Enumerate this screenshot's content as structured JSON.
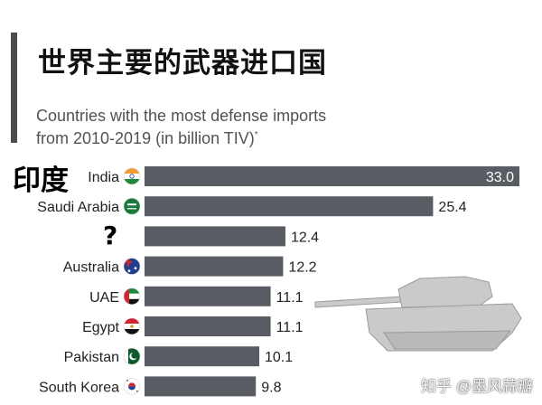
{
  "header": {
    "title": "世界主要的武器进口国",
    "subtitle_line1": "Countries with the most defense imports",
    "subtitle_line2": "from 2010-2019 (in billion TIV)",
    "subtitle_mark": "*"
  },
  "annotations": {
    "india_cn": "印度",
    "question": "?"
  },
  "watermark": "知乎 @墨风蒜瓣",
  "colors": {
    "bar": "#595d63",
    "accent": "#4a4d52",
    "tank": "#c9cacb"
  },
  "chart_data": {
    "type": "bar",
    "orientation": "horizontal",
    "title": "世界主要的武器进口国",
    "subtitle": "Countries with the most defense imports from 2010-2019 (in billion TIV)*",
    "xlim": [
      0,
      35
    ],
    "categories": [
      "India",
      "Saudi Arabia",
      "",
      "Australia",
      "UAE",
      "Egypt",
      "Pakistan",
      "South Korea"
    ],
    "values": [
      33.0,
      25.4,
      12.4,
      12.2,
      11.1,
      11.1,
      10.1,
      9.8
    ],
    "value_labels": [
      "33.0",
      "25.4",
      "12.4",
      "12.2",
      "11.1",
      "11.1",
      "10.1",
      "9.8"
    ],
    "flags": [
      "india-flag-icon",
      "saudi-flag-icon",
      "",
      "australia-flag-icon",
      "uae-flag-icon",
      "egypt-flag-icon",
      "pakistan-flag-icon",
      "south-korea-flag-icon"
    ]
  }
}
